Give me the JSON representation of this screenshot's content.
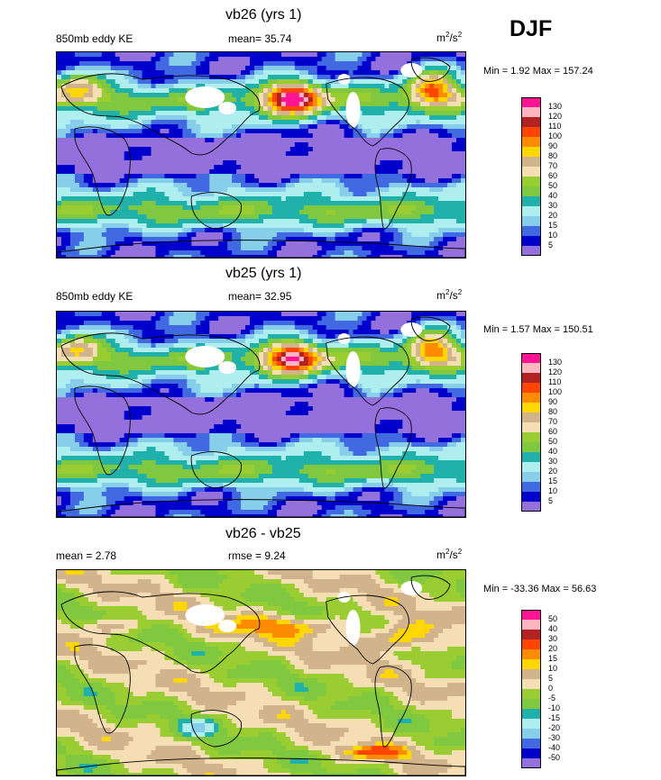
{
  "season": "DJF",
  "chart_data": [
    {
      "type": "heatmap",
      "title": "vb26 (yrs 1)",
      "left_label": "850mb eddy KE",
      "stat_label": "mean=  35.74",
      "units_base": "m",
      "units_exp1": "2",
      "units_mid": "/s",
      "units_exp2": "2",
      "minmax": "Min =   1.92 Max = 157.24",
      "min": 1.92,
      "max": 157.24,
      "mean": 35.74,
      "levels": [
        "130",
        "120",
        "110",
        "100",
        "90",
        "80",
        "70",
        "60",
        "50",
        "40",
        "30",
        "20",
        "15",
        "10",
        "5"
      ],
      "colors": [
        "#ff1493",
        "#ffb6c1",
        "#b22222",
        "#ff4500",
        "#ff8c00",
        "#ffd700",
        "#d2b48c",
        "#f5deb3",
        "#9acd32",
        "#7fc840",
        "#20b2aa",
        "#afeeee",
        "#87ceeb",
        "#4169e1",
        "#0000cd",
        "#9370db"
      ]
    },
    {
      "type": "heatmap",
      "title": "vb25 (yrs 1)",
      "left_label": "850mb eddy KE",
      "stat_label": "mean=  32.95",
      "units_base": "m",
      "units_exp1": "2",
      "units_mid": "/s",
      "units_exp2": "2",
      "minmax": "Min =   1.57 Max = 150.51",
      "min": 1.57,
      "max": 150.51,
      "mean": 32.95,
      "levels": [
        "130",
        "120",
        "110",
        "100",
        "90",
        "80",
        "70",
        "60",
        "50",
        "40",
        "30",
        "20",
        "15",
        "10",
        "5"
      ],
      "colors": [
        "#ff1493",
        "#ffb6c1",
        "#b22222",
        "#ff4500",
        "#ff8c00",
        "#ffd700",
        "#d2b48c",
        "#f5deb3",
        "#9acd32",
        "#7fc840",
        "#20b2aa",
        "#afeeee",
        "#87ceeb",
        "#4169e1",
        "#0000cd",
        "#9370db"
      ]
    },
    {
      "type": "heatmap",
      "title": "vb26 - vb25",
      "left_label": "mean =   2.78",
      "stat_label": "rmse =   9.24",
      "units_base": "m",
      "units_exp1": "2",
      "units_mid": "/s",
      "units_exp2": "2",
      "minmax": "Min = -33.36 Max =  56.63",
      "min": -33.36,
      "max": 56.63,
      "mean": 2.78,
      "rmse": 9.24,
      "levels": [
        "50",
        "40",
        "30",
        "20",
        "15",
        "10",
        "5",
        "0",
        "-5",
        "-10",
        "-15",
        "-20",
        "-30",
        "-40",
        "-50"
      ],
      "colors": [
        "#ff1493",
        "#ffb6c1",
        "#b22222",
        "#ff4500",
        "#ff8c00",
        "#ffd700",
        "#d2b48c",
        "#f5deb3",
        "#9acd32",
        "#7fc840",
        "#20b2aa",
        "#afeeee",
        "#87ceeb",
        "#4169e1",
        "#0000cd",
        "#9370db"
      ]
    }
  ]
}
